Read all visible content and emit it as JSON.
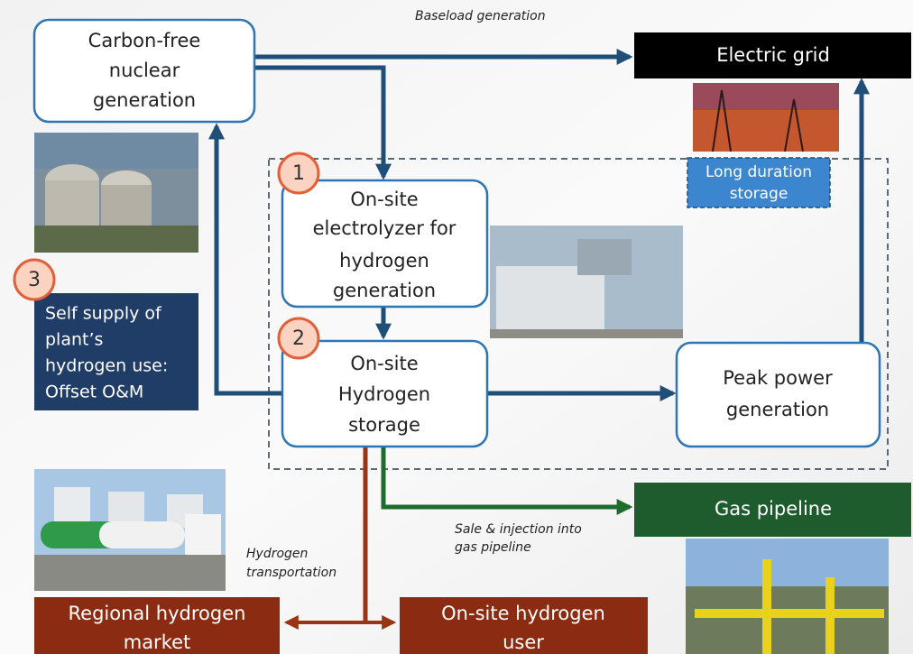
{
  "nodes": {
    "nuclear": {
      "lines": [
        "Carbon-free",
        "nuclear",
        "generation"
      ]
    },
    "grid": {
      "lines": [
        "Electric grid"
      ]
    },
    "long_storage": {
      "lines": [
        "Long duration",
        "storage"
      ]
    },
    "electrolyzer": {
      "lines": [
        "On-site",
        "electrolyzer for",
        "hydrogen",
        "generation"
      ]
    },
    "storage": {
      "lines": [
        "On-site",
        "Hydrogen",
        "storage"
      ]
    },
    "peak": {
      "lines": [
        "Peak power",
        "generation"
      ]
    },
    "self_supply": {
      "lines": [
        "Self supply of",
        "plant’s",
        "hydrogen use:",
        "Offset O&M"
      ]
    },
    "gas": {
      "lines": [
        "Gas pipeline"
      ]
    },
    "regional": {
      "lines": [
        "Regional hydrogen",
        "market"
      ]
    },
    "user": {
      "lines": [
        "On-site hydrogen",
        "user"
      ]
    }
  },
  "badges": [
    "1",
    "2",
    "3"
  ],
  "edge_labels": {
    "baseload": {
      "lines": [
        "Baseload generation"
      ]
    },
    "sale": {
      "lines": [
        "Sale & injection into",
        "gas pipeline"
      ]
    },
    "transport": {
      "lines": [
        "Hydrogen",
        "transportation"
      ]
    }
  }
}
